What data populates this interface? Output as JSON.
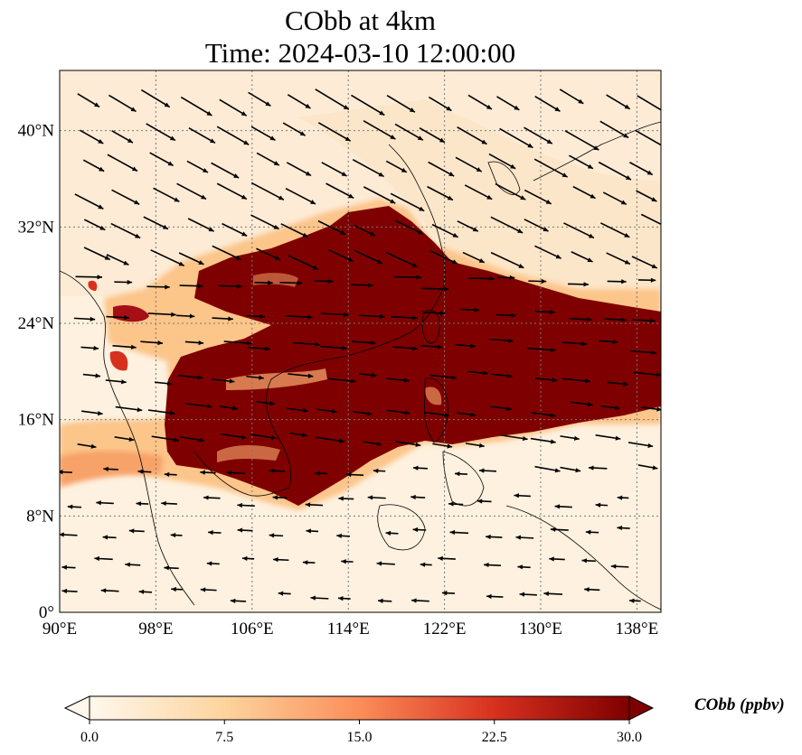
{
  "title": {
    "line1": "CObb at 4km",
    "line2": "Time: 2024-03-10 12:00:00"
  },
  "map": {
    "extent": {
      "lon": [
        90,
        140
      ],
      "lat": [
        0,
        45
      ]
    },
    "xticks": [
      {
        "lon": 90,
        "label": "90°E"
      },
      {
        "lon": 98,
        "label": "98°E"
      },
      {
        "lon": 106,
        "label": "106°E"
      },
      {
        "lon": 114,
        "label": "114°E"
      },
      {
        "lon": 122,
        "label": "122°E"
      },
      {
        "lon": 130,
        "label": "130°E"
      },
      {
        "lon": 138,
        "label": "138°E"
      }
    ],
    "yticks": [
      {
        "lat": 0,
        "label": "0°"
      },
      {
        "lat": 8,
        "label": "8°N"
      },
      {
        "lat": 16,
        "label": "16°N"
      },
      {
        "lat": 24,
        "label": "24°N"
      },
      {
        "lat": 32,
        "label": "32°N"
      },
      {
        "lat": 40,
        "label": "40°N"
      }
    ],
    "gridlines": "dotted",
    "field": "CObb",
    "plume_note": "high CObb plume from Indochina eastward across South China Sea to 140°E",
    "wind_vectors": "shown as black arrows"
  },
  "colorbar": {
    "label": "CObb (ppbv)",
    "min": 0.0,
    "max": 30.0,
    "extend": "both",
    "colormap": "OrRd",
    "ticks": [
      {
        "value": 0.0,
        "label": "0.0"
      },
      {
        "value": 7.5,
        "label": "7.5"
      },
      {
        "value": 15.0,
        "label": "15.0"
      },
      {
        "value": 22.5,
        "label": "22.5"
      },
      {
        "value": 30.0,
        "label": "30.0"
      }
    ],
    "colors": [
      "#fff7ec",
      "#fdd49e",
      "#fc8d59",
      "#d7301f",
      "#7f0000"
    ]
  }
}
